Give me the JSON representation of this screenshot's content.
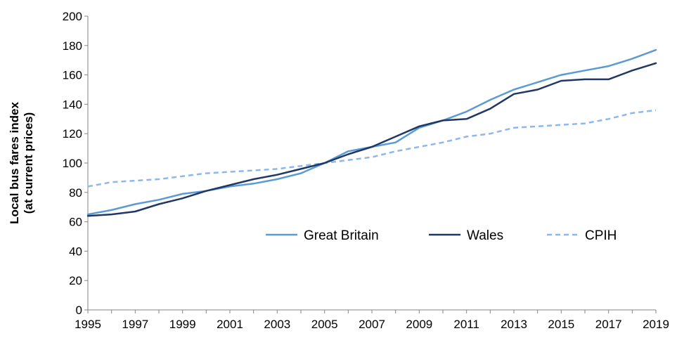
{
  "chart_data": {
    "type": "line",
    "title": "",
    "xlabel": "",
    "ylabel_line1": "Local bus fares index",
    "ylabel_line2": "(at current prices)",
    "ylim": [
      0,
      200
    ],
    "yticks": [
      "0",
      "20",
      "40",
      "60",
      "80",
      "100",
      "120",
      "140",
      "160",
      "180",
      "200"
    ],
    "xlim": [
      1995,
      2019
    ],
    "xticks": [
      "1995",
      "1997",
      "1999",
      "2001",
      "2003",
      "2005",
      "2007",
      "2009",
      "2011",
      "2013",
      "2015",
      "2017",
      "2019"
    ],
    "grid": false,
    "legend_position": "bottom-right",
    "x": [
      1995,
      1996,
      1997,
      1998,
      1999,
      2000,
      2001,
      2002,
      2003,
      2004,
      2005,
      2006,
      2007,
      2008,
      2009,
      2010,
      2011,
      2012,
      2013,
      2014,
      2015,
      2016,
      2017,
      2018,
      2019
    ],
    "series": [
      {
        "name": "Great Britain",
        "color": "#5b9bd5",
        "style": "solid",
        "values": [
          65,
          68,
          72,
          75,
          79,
          81,
          84,
          86,
          89,
          93,
          100,
          108,
          111,
          114,
          124,
          129,
          135,
          143,
          150,
          155,
          160,
          163,
          166,
          171,
          177
        ]
      },
      {
        "name": "Wales",
        "color": "#1f3864",
        "style": "solid",
        "values": [
          64,
          65,
          67,
          72,
          76,
          81,
          85,
          89,
          92,
          96,
          100,
          106,
          111,
          118,
          125,
          129,
          130,
          137,
          147,
          150,
          156,
          157,
          157,
          163,
          168
        ]
      },
      {
        "name": "CPIH",
        "color": "#8fb8ea",
        "style": "dashed",
        "values": [
          84,
          87,
          88,
          89,
          91,
          93,
          94,
          95,
          96,
          98,
          100,
          102,
          104,
          108,
          111,
          114,
          118,
          120,
          124,
          125,
          126,
          127,
          130,
          134,
          136
        ]
      }
    ]
  }
}
